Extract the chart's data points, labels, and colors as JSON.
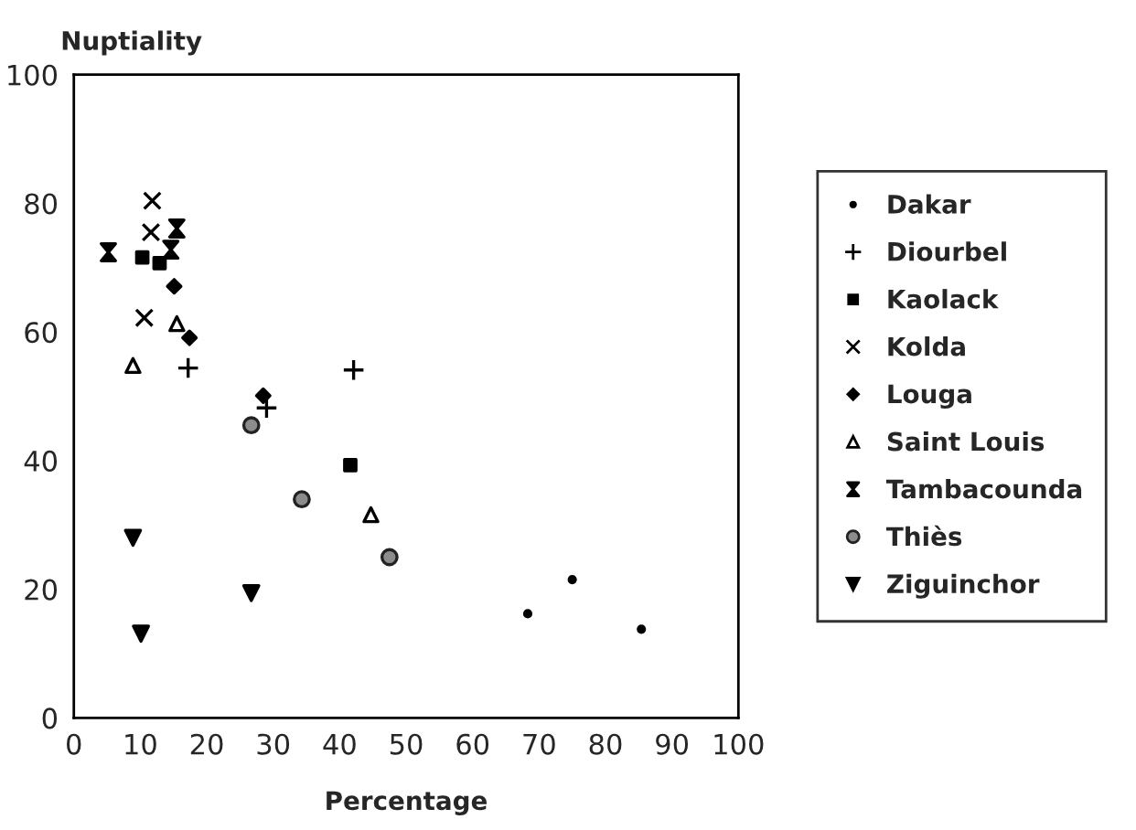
{
  "chart_data": {
    "type": "scatter",
    "xlabel": "Percentage",
    "ylabel": "Nuptiality",
    "xlim": [
      0,
      100
    ],
    "ylim": [
      0,
      100
    ],
    "xticks": [
      0,
      10,
      20,
      30,
      40,
      50,
      60,
      70,
      80,
      90,
      100
    ],
    "yticks": [
      0,
      20,
      40,
      60,
      80,
      100
    ],
    "grid": false,
    "legend": "right",
    "series": [
      {
        "name": "Dakar",
        "color": "#000000",
        "marker": "circle",
        "x": [
          68.3,
          75.0,
          85.4
        ],
        "values": [
          16.2,
          21.5,
          13.8
        ]
      },
      {
        "name": "Diourbel",
        "color": "#000000",
        "marker": "cross",
        "x": [
          17.2,
          42.1,
          29.0
        ],
        "values": [
          54.4,
          54.1,
          48.2
        ]
      },
      {
        "name": "Kaolack",
        "color": "#000000",
        "marker": "square",
        "x": [
          10.3,
          12.9,
          41.6
        ],
        "values": [
          71.6,
          70.7,
          39.3
        ]
      },
      {
        "name": "Kolda",
        "color": "#000000",
        "marker": "cross",
        "x": [
          11.8,
          11.6,
          10.6
        ],
        "values": [
          80.4,
          75.5,
          62.2
        ]
      },
      {
        "name": "Louga",
        "color": "#000000",
        "marker": "diamond",
        "x": [
          15.1,
          17.4,
          28.5
        ],
        "values": [
          67.1,
          59.1,
          50.1
        ]
      },
      {
        "name": "Saint Louis",
        "color": "#000000",
        "marker": "triangle",
        "x": [
          15.5,
          8.9,
          44.7
        ],
        "values": [
          61.3,
          54.8,
          31.6
        ]
      },
      {
        "name": "Tambacounda",
        "color": "#000000",
        "marker": "diamond",
        "x": [
          5.2,
          15.5,
          14.6
        ],
        "values": [
          72.4,
          76.1,
          72.8
        ]
      },
      {
        "name": "Thiès",
        "color": "#8c8c8c",
        "marker": "circle",
        "x": [
          26.7,
          34.3,
          47.5
        ],
        "values": [
          45.5,
          34.0,
          25.0
        ]
      },
      {
        "name": "Ziguinchor",
        "color": "#000000",
        "marker": "triangle",
        "x": [
          8.9,
          26.7,
          10.1
        ],
        "values": [
          28.0,
          19.4,
          13.1
        ]
      }
    ]
  }
}
